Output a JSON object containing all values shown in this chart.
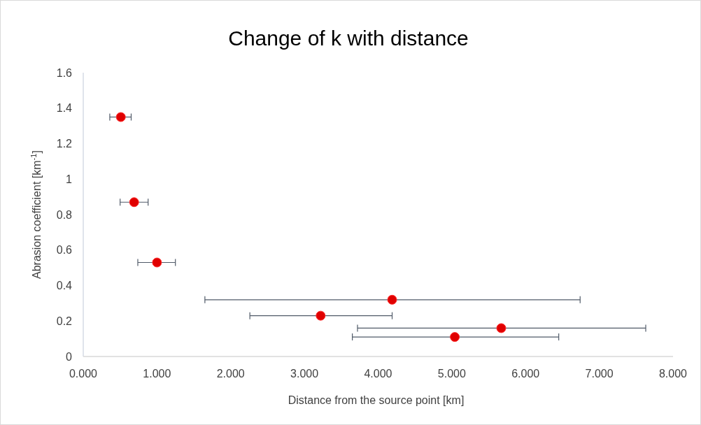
{
  "chart_data": {
    "type": "scatter",
    "title": "Change of k with distance",
    "xlabel": "Distance from the source point [km]",
    "ylabel": "Abrasion coefficient [km$^{-1}$]",
    "xlim": [
      0,
      8
    ],
    "ylim": [
      0,
      1.6
    ],
    "xticks": [
      {
        "value": 0,
        "label": "0.000"
      },
      {
        "value": 1,
        "label": "1.000"
      },
      {
        "value": 2,
        "label": "2.000"
      },
      {
        "value": 3,
        "label": "3.000"
      },
      {
        "value": 4,
        "label": "4.000"
      },
      {
        "value": 5,
        "label": "5.000"
      },
      {
        "value": 6,
        "label": "6.000"
      },
      {
        "value": 7,
        "label": "7.000"
      },
      {
        "value": 8,
        "label": "8.000"
      }
    ],
    "yticks": [
      0,
      0.2,
      0.4,
      0.6,
      0.8,
      1,
      1.2,
      1.4,
      1.6
    ],
    "marker": "circle",
    "grid": false,
    "series": [
      {
        "color": "#e00000",
        "x": [
          0.51,
          0.69,
          1.0,
          4.19,
          3.22,
          5.67,
          5.04
        ],
        "values": [
          1.35,
          0.87,
          0.53,
          0.32,
          0.23,
          0.16,
          0.11
        ],
        "xerrors": [
          [
            0.36,
            0.65
          ],
          [
            0.5,
            0.88
          ],
          [
            0.74,
            1.25
          ],
          [
            1.65,
            6.74
          ],
          [
            2.26,
            4.19
          ],
          [
            3.72,
            7.63
          ],
          [
            3.65,
            6.45
          ]
        ]
      }
    ]
  }
}
